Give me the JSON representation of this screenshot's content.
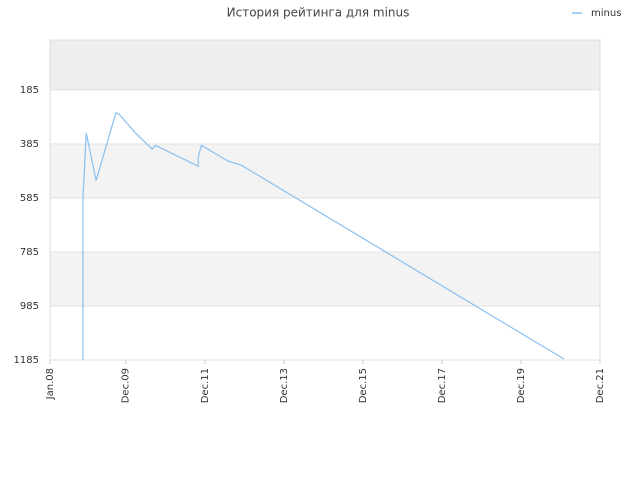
{
  "chart_data": {
    "type": "line",
    "title": "История рейтинга для minus",
    "x": [
      "2008-11",
      "2008-11",
      "2008-11",
      "2008-12",
      "2009-03",
      "2009-09",
      "2009-10",
      "2010-03",
      "2010-08",
      "2010-09",
      "2011-10",
      "2011-10",
      "2011-11",
      "2012-07",
      "2012-08",
      "2012-11",
      "2021-01"
    ],
    "series": [
      {
        "name": "minus",
        "color": "#88c0f0",
        "values": [
          1185,
          985,
          590,
          345,
          520,
          270,
          275,
          345,
          404,
          390,
          467,
          433,
          390,
          448,
          452,
          463,
          1181
        ]
      }
    ],
    "xlim": [
      "2008-01",
      "2021-12"
    ],
    "xticks": [
      {
        "value": "2008-01",
        "label": "Jan.08"
      },
      {
        "value": "2009-12",
        "label": "Dec.09"
      },
      {
        "value": "2011-12",
        "label": "Dec.11"
      },
      {
        "value": "2013-12",
        "label": "Dec.13"
      },
      {
        "value": "2015-12",
        "label": "Dec.15"
      },
      {
        "value": "2017-12",
        "label": "Dec.17"
      },
      {
        "value": "2019-12",
        "label": "Dec.19"
      },
      {
        "value": "2021-12",
        "label": "Dec.21"
      }
    ],
    "ylim": [
      1185,
      0
    ],
    "yticks": [
      185,
      385,
      585,
      785,
      985,
      1185
    ],
    "grid": true,
    "legend": "top-right"
  }
}
